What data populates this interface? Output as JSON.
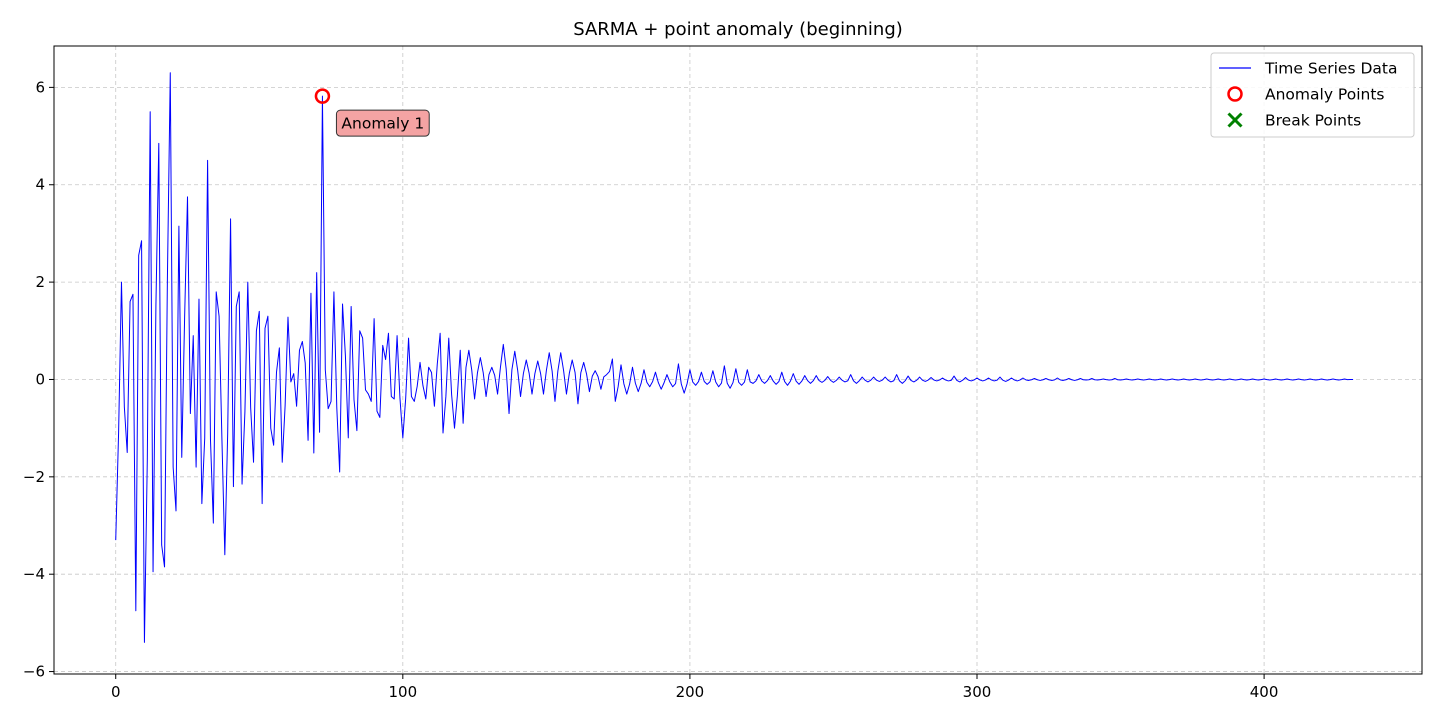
{
  "chart_data": {
    "type": "line",
    "title": "SARMA + point anomaly (beginning)",
    "xlabel": "",
    "ylabel": "",
    "xlim": [
      -21.5,
      455
    ],
    "ylim": [
      -6.05,
      6.85
    ],
    "xticks": [
      0,
      100,
      200,
      300,
      400
    ],
    "yticks": [
      -6,
      -4,
      -2,
      0,
      2,
      4,
      6
    ],
    "xtick_labels": [
      "0",
      "100",
      "200",
      "300",
      "400"
    ],
    "ytick_labels": [
      "−6",
      "−4",
      "−2",
      "0",
      "2",
      "4",
      "6"
    ],
    "grid": true,
    "legend_position": "top-right",
    "series": [
      {
        "name": "Time Series Data",
        "color": "#0000ff",
        "style": "line",
        "n_points": 432,
        "keypoints": [
          [
            0,
            -3.3
          ],
          [
            2,
            2.0
          ],
          [
            4,
            -1.5
          ],
          [
            5,
            1.6
          ],
          [
            6,
            1.75
          ],
          [
            7,
            -4.75
          ],
          [
            8,
            2.55
          ],
          [
            9,
            2.85
          ],
          [
            10,
            -5.4
          ],
          [
            12,
            5.5
          ],
          [
            13,
            -3.95
          ],
          [
            15,
            4.85
          ],
          [
            16,
            -3.4
          ],
          [
            17,
            -3.85
          ],
          [
            19,
            6.3
          ],
          [
            20,
            -1.8
          ],
          [
            21,
            -2.7
          ],
          [
            22,
            3.15
          ],
          [
            23,
            -1.6
          ],
          [
            25,
            3.75
          ],
          [
            26,
            -0.7
          ],
          [
            27,
            0.9
          ],
          [
            28,
            -1.8
          ],
          [
            29,
            1.65
          ],
          [
            30,
            -2.55
          ],
          [
            32,
            4.5
          ],
          [
            34,
            -2.95
          ],
          [
            35,
            1.8
          ],
          [
            36,
            1.3
          ],
          [
            38,
            -3.6
          ],
          [
            40,
            3.3
          ],
          [
            41,
            -2.2
          ],
          [
            42,
            1.5
          ],
          [
            43,
            1.8
          ],
          [
            44,
            -2.15
          ],
          [
            46,
            2.0
          ],
          [
            48,
            -1.7
          ],
          [
            49,
            1.0
          ],
          [
            50,
            1.4
          ],
          [
            51,
            -2.55
          ],
          [
            52,
            1.05
          ],
          [
            53,
            1.3
          ],
          [
            54,
            -1.0
          ],
          [
            55,
            -1.35
          ],
          [
            56,
            0.15
          ],
          [
            57,
            0.65
          ],
          [
            58,
            -1.7
          ],
          [
            60,
            1.28
          ],
          [
            61,
            -0.05
          ],
          [
            63,
            -0.55
          ],
          [
            64,
            0.6
          ],
          [
            65,
            0.78
          ],
          [
            67,
            -1.25
          ],
          [
            72,
            5.82
          ],
          [
            73,
            0.2
          ],
          [
            74,
            -0.6
          ],
          [
            76,
            1.8
          ],
          [
            78,
            -1.9
          ],
          [
            79,
            1.55
          ],
          [
            81,
            -1.2
          ],
          [
            82,
            1.5
          ],
          [
            84,
            -1.05
          ],
          [
            85,
            1.0
          ],
          [
            86,
            0.85
          ],
          [
            88,
            -0.3
          ],
          [
            89,
            -0.45
          ],
          [
            90,
            1.25
          ],
          [
            91,
            -0.65
          ],
          [
            92,
            -0.78
          ],
          [
            93,
            0.7
          ],
          [
            95,
            0.95
          ],
          [
            96,
            -0.35
          ],
          [
            97,
            -0.4
          ],
          [
            98,
            0.9
          ],
          [
            100,
            -1.2
          ],
          [
            102,
            0.85
          ],
          [
            103,
            -0.35
          ],
          [
            104,
            -0.45
          ],
          [
            106,
            0.35
          ],
          [
            108,
            -0.4
          ],
          [
            109,
            0.25
          ],
          [
            111,
            -0.55
          ],
          [
            113,
            0.95
          ],
          [
            114,
            -1.1
          ],
          [
            116,
            0.85
          ],
          [
            118,
            -1.0
          ],
          [
            120,
            0.6
          ],
          [
            121,
            -0.9
          ],
          [
            123,
            0.6
          ],
          [
            125,
            -0.4
          ],
          [
            127,
            0.45
          ],
          [
            129,
            -0.35
          ],
          [
            131,
            0.25
          ],
          [
            133,
            -0.3
          ],
          [
            135,
            0.72
          ],
          [
            137,
            -0.7
          ],
          [
            139,
            0.58
          ],
          [
            141,
            -0.35
          ],
          [
            143,
            0.4
          ],
          [
            145,
            -0.3
          ],
          [
            147,
            0.38
          ],
          [
            149,
            -0.3
          ],
          [
            151,
            0.55
          ],
          [
            153,
            -0.45
          ],
          [
            155,
            0.55
          ],
          [
            157,
            -0.3
          ],
          [
            159,
            0.4
          ],
          [
            161,
            -0.5
          ],
          [
            163,
            0.35
          ],
          [
            165,
            -0.25
          ],
          [
            167,
            0.18
          ],
          [
            169,
            -0.2
          ],
          [
            171,
            0.1
          ],
          [
            173,
            0.42
          ],
          [
            174,
            -0.45
          ],
          [
            176,
            0.3
          ],
          [
            178,
            -0.3
          ],
          [
            180,
            0.25
          ],
          [
            182,
            -0.25
          ],
          [
            184,
            0.2
          ],
          [
            186,
            -0.15
          ],
          [
            188,
            0.15
          ],
          [
            190,
            -0.2
          ],
          [
            192,
            0.1
          ],
          [
            194,
            -0.15
          ],
          [
            196,
            0.32
          ],
          [
            198,
            -0.28
          ],
          [
            200,
            0.2
          ],
          [
            202,
            -0.12
          ],
          [
            204,
            0.15
          ],
          [
            206,
            -0.1
          ],
          [
            208,
            0.18
          ],
          [
            210,
            -0.15
          ],
          [
            212,
            0.28
          ],
          [
            214,
            -0.18
          ],
          [
            216,
            0.22
          ],
          [
            218,
            -0.12
          ],
          [
            220,
            0.2
          ],
          [
            222,
            -0.08
          ],
          [
            224,
            0.1
          ],
          [
            226,
            -0.08
          ],
          [
            228,
            0.08
          ],
          [
            230,
            -0.1
          ],
          [
            232,
            0.15
          ],
          [
            234,
            -0.12
          ],
          [
            236,
            0.12
          ],
          [
            238,
            -0.1
          ],
          [
            240,
            0.08
          ],
          [
            242,
            -0.08
          ],
          [
            244,
            0.08
          ],
          [
            246,
            -0.06
          ],
          [
            248,
            0.06
          ],
          [
            250,
            -0.06
          ],
          [
            252,
            0.05
          ],
          [
            254,
            -0.05
          ],
          [
            256,
            0.1
          ],
          [
            258,
            -0.08
          ],
          [
            260,
            0.05
          ],
          [
            262,
            -0.05
          ],
          [
            264,
            0.05
          ],
          [
            266,
            -0.04
          ],
          [
            268,
            0.05
          ],
          [
            270,
            -0.05
          ],
          [
            272,
            0.1
          ],
          [
            274,
            -0.08
          ],
          [
            276,
            0.07
          ],
          [
            278,
            -0.05
          ],
          [
            280,
            0.05
          ],
          [
            282,
            -0.04
          ],
          [
            284,
            0.04
          ],
          [
            286,
            -0.03
          ],
          [
            288,
            0.03
          ],
          [
            290,
            -0.03
          ],
          [
            292,
            0.07
          ],
          [
            294,
            -0.05
          ],
          [
            296,
            0.04
          ],
          [
            298,
            -0.03
          ],
          [
            300,
            0.03
          ],
          [
            302,
            -0.03
          ],
          [
            304,
            0.03
          ],
          [
            306,
            -0.03
          ],
          [
            308,
            0.05
          ],
          [
            310,
            -0.04
          ],
          [
            312,
            0.03
          ],
          [
            314,
            -0.03
          ],
          [
            316,
            0.03
          ],
          [
            318,
            -0.02
          ],
          [
            320,
            0.02
          ],
          [
            322,
            -0.02
          ],
          [
            324,
            0.02
          ],
          [
            326,
            -0.02
          ],
          [
            328,
            0.03
          ],
          [
            330,
            -0.02
          ],
          [
            332,
            0.02
          ],
          [
            334,
            -0.02
          ],
          [
            336,
            0.02
          ],
          [
            338,
            -0.01
          ],
          [
            340,
            0.02
          ],
          [
            342,
            -0.01
          ],
          [
            344,
            0.01
          ],
          [
            346,
            -0.01
          ],
          [
            348,
            0.02
          ],
          [
            350,
            -0.01
          ],
          [
            352,
            0.01
          ],
          [
            354,
            -0.01
          ],
          [
            356,
            0.01
          ],
          [
            358,
            -0.01
          ],
          [
            360,
            0.01
          ],
          [
            362,
            -0.01
          ],
          [
            364,
            0.01
          ],
          [
            366,
            -0.01
          ],
          [
            368,
            0.01
          ],
          [
            370,
            -0.01
          ],
          [
            372,
            0.01
          ],
          [
            374,
            -0.01
          ],
          [
            376,
            0.01
          ],
          [
            378,
            -0.01
          ],
          [
            380,
            0.01
          ],
          [
            382,
            -0.01
          ],
          [
            384,
            0.01
          ],
          [
            386,
            -0.01
          ],
          [
            388,
            0.01
          ],
          [
            390,
            -0.01
          ],
          [
            392,
            0.01
          ],
          [
            394,
            -0.01
          ],
          [
            396,
            0.01
          ],
          [
            398,
            -0.01
          ],
          [
            400,
            0.01
          ],
          [
            402,
            -0.01
          ],
          [
            404,
            0.01
          ],
          [
            406,
            -0.01
          ],
          [
            408,
            0.01
          ],
          [
            410,
            -0.01
          ],
          [
            412,
            0.01
          ],
          [
            414,
            -0.01
          ],
          [
            416,
            0.01
          ],
          [
            418,
            -0.01
          ],
          [
            420,
            0.01
          ],
          [
            422,
            -0.01
          ],
          [
            424,
            0.01
          ],
          [
            426,
            -0.01
          ],
          [
            428,
            0.01
          ],
          [
            430,
            0.0
          ],
          [
            431,
            0.0
          ]
        ]
      },
      {
        "name": "Anomaly Points",
        "color": "#ff0000",
        "style": "hollow-circle",
        "points": [
          [
            72,
            5.82
          ]
        ]
      },
      {
        "name": "Break Points",
        "color": "#008000",
        "style": "x-marker",
        "points": []
      }
    ],
    "annotations": [
      {
        "text": "Anomaly 1",
        "x": 72,
        "y": 5.82,
        "bg_color": "#f4a3a3",
        "border_color": "#333333"
      }
    ]
  }
}
